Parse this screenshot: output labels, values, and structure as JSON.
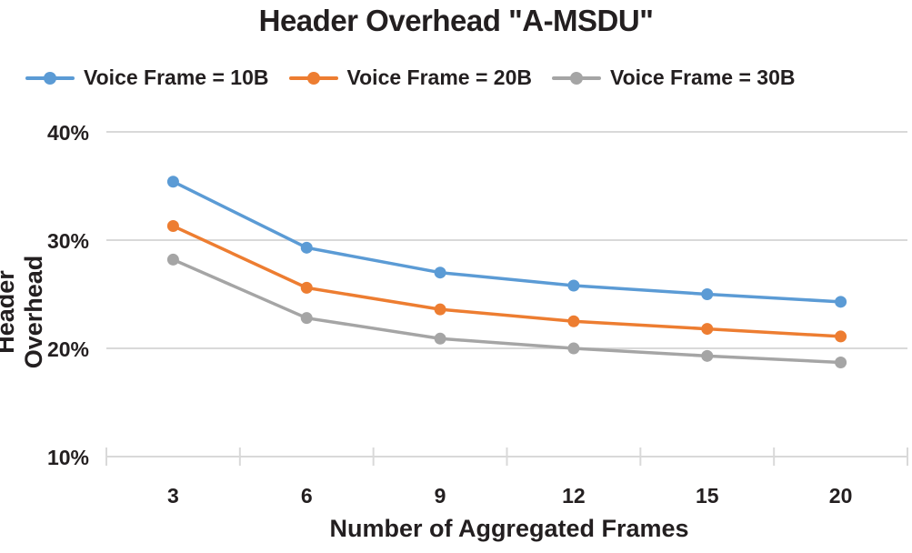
{
  "chart_data": {
    "type": "line",
    "title": "Header Overhead \"A-MSDU\"",
    "xlabel": "Number of Aggregated Frames",
    "ylabel": "Header Overhead",
    "categories": [
      "3",
      "6",
      "9",
      "12",
      "15",
      "20"
    ],
    "ylim": [
      10,
      40
    ],
    "yticks": [
      "10%",
      "20%",
      "30%",
      "40%"
    ],
    "grid": true,
    "legend_position": "top",
    "series": [
      {
        "name": "Voice Frame = 10B",
        "color": "#5b9bd5",
        "values": [
          35.4,
          29.3,
          27.0,
          25.8,
          25.0,
          24.3
        ]
      },
      {
        "name": "Voice Frame = 20B",
        "color": "#ed7d31",
        "values": [
          31.3,
          25.6,
          23.6,
          22.5,
          21.8,
          21.1
        ]
      },
      {
        "name": "Voice Frame = 30B",
        "color": "#a5a5a5",
        "values": [
          28.2,
          22.8,
          20.9,
          20.0,
          19.3,
          18.7
        ]
      }
    ]
  }
}
